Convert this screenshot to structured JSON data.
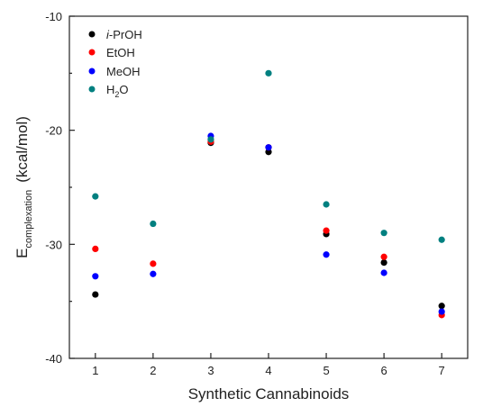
{
  "chart_data": {
    "type": "scatter",
    "title": "",
    "xlabel": "Synthetic Cannabinoids",
    "ylabel": {
      "main": "E",
      "subscript": "complexation",
      "units": "(kcal/mol)"
    },
    "xlim": [
      0.55,
      7.45
    ],
    "ylim": [
      -40,
      -10
    ],
    "x_ticks": [
      1,
      2,
      3,
      4,
      5,
      6,
      7
    ],
    "y_ticks": [
      -40,
      -30,
      -20,
      -10
    ],
    "grid": false,
    "legend_position": "top-left",
    "series": [
      {
        "name": "i-PrOH",
        "legend_italic_prefix": "i",
        "legend_rest": "-PrOH",
        "color": "#000000",
        "points": [
          [
            1,
            -34.4
          ],
          [
            3,
            -21.1
          ],
          [
            4,
            -21.9
          ],
          [
            5,
            -29.1
          ],
          [
            6,
            -31.6
          ],
          [
            7,
            -35.4
          ]
        ]
      },
      {
        "name": "EtOH",
        "color": "#ff0000",
        "points": [
          [
            1,
            -30.4
          ],
          [
            2,
            -31.7
          ],
          [
            3,
            -21.0
          ],
          [
            4,
            -21.5
          ],
          [
            5,
            -28.8
          ],
          [
            6,
            -31.1
          ],
          [
            7,
            -36.2
          ]
        ]
      },
      {
        "name": "MeOH",
        "color": "#0000ff",
        "points": [
          [
            1,
            -32.8
          ],
          [
            2,
            -32.6
          ],
          [
            3,
            -20.5
          ],
          [
            4,
            -21.5
          ],
          [
            5,
            -30.9
          ],
          [
            6,
            -32.5
          ],
          [
            7,
            -35.9
          ]
        ]
      },
      {
        "name": "H2O",
        "legend_main": "H",
        "legend_sub": "2",
        "legend_tail": "O",
        "color": "#008080",
        "points": [
          [
            1,
            -25.8
          ],
          [
            2,
            -28.2
          ],
          [
            3,
            -20.8
          ],
          [
            4,
            -15.0
          ],
          [
            5,
            -26.5
          ],
          [
            6,
            -29.0
          ],
          [
            7,
            -29.6
          ]
        ]
      }
    ]
  }
}
